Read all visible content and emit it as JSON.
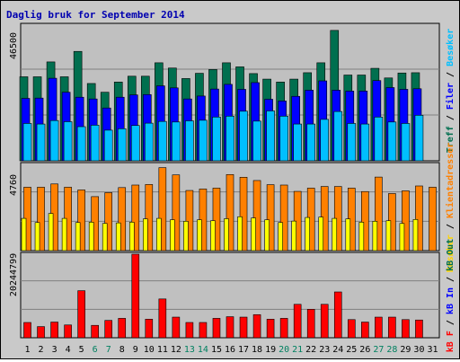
{
  "chart_data": [
    {
      "type": "bar",
      "title": "Daglig bruk for September 2014",
      "max_label": "46500",
      "x_tick_labels": [
        "1",
        "2",
        "3",
        "4",
        "5",
        "6",
        "7",
        "8",
        "9",
        "10",
        "11",
        "12",
        "13",
        "14",
        "15",
        "16",
        "17",
        "18",
        "19",
        "20",
        "21",
        "22",
        "23",
        "24",
        "25",
        "26",
        "27",
        "28",
        "29",
        "30",
        "31"
      ],
      "weekend_days": [
        6,
        7,
        13,
        14,
        20,
        21,
        27,
        28
      ],
      "ylim": [
        0,
        46500
      ],
      "series": [
        {
          "name": "Treff",
          "color": "#006f4f",
          "values": [
            28800,
            28800,
            33900,
            28800,
            37500,
            26500,
            23500,
            27000,
            29000,
            29000,
            33600,
            31800,
            28200,
            30000,
            31300,
            33600,
            32200,
            29900,
            28000,
            27000,
            28000,
            30200,
            33600,
            44700,
            29400,
            29400,
            31700,
            28400,
            30100,
            30200,
            0
          ]
        },
        {
          "name": "Filer",
          "color": "#0000ff",
          "values": [
            21400,
            21500,
            28300,
            23500,
            21800,
            21200,
            18100,
            21800,
            22600,
            22700,
            25700,
            25000,
            21200,
            22200,
            24600,
            26200,
            24500,
            26800,
            21100,
            20500,
            22100,
            24200,
            27400,
            24200,
            23900,
            23900,
            27500,
            25100,
            24500,
            24700,
            0
          ]
        },
        {
          "name": "Besøk",
          "color": "#00bfff",
          "values": [
            12800,
            12600,
            13800,
            13400,
            11700,
            12200,
            10500,
            11000,
            12100,
            12900,
            13500,
            13300,
            13700,
            13900,
            15000,
            15300,
            17000,
            13600,
            17100,
            15300,
            12600,
            12600,
            14200,
            16900,
            12800,
            12600,
            15000,
            13300,
            12800,
            15600,
            0
          ]
        }
      ]
    },
    {
      "type": "bar",
      "max_label": "4760",
      "ylim": [
        0,
        4760
      ],
      "series": [
        {
          "name": "Klientadresser",
          "color": "#ff8000",
          "values": [
            3500,
            3500,
            3680,
            3500,
            3350,
            2980,
            3200,
            3480,
            3620,
            3650,
            4580,
            4180,
            3320,
            3400,
            3450,
            4200,
            4050,
            3870,
            3640,
            3620,
            3270,
            3450,
            3540,
            3540,
            3450,
            3260,
            4060,
            3150,
            3300,
            3570,
            3500
          ]
        },
        {
          "name": "Bessøker",
          "color": "#ffff00",
          "values": [
            1780,
            1550,
            2050,
            1780,
            1550,
            1570,
            1500,
            1530,
            1570,
            1750,
            1780,
            1700,
            1620,
            1700,
            1650,
            1760,
            1870,
            1800,
            1700,
            1550,
            1630,
            1830,
            1850,
            1780,
            1750,
            1570,
            1620,
            1650,
            1500,
            1720,
            0
          ]
        }
      ]
    },
    {
      "type": "bar",
      "max_label": "20244799",
      "ylim": [
        0,
        20244799
      ],
      "series": [
        {
          "name": "kB F",
          "color": "#ff0000",
          "values": [
            0,
            0,
            0,
            0,
            0,
            0,
            0,
            0,
            0,
            0,
            0,
            0,
            0,
            0,
            0,
            0,
            0,
            0,
            0,
            0,
            0,
            0,
            0,
            0,
            0,
            0,
            0,
            0,
            0,
            0,
            0
          ]
        },
        {
          "name": "kB In",
          "color": "#0000ff",
          "values": [
            0,
            0,
            0,
            0,
            0,
            0,
            0,
            0,
            0,
            0,
            0,
            0,
            0,
            0,
            0,
            0,
            0,
            0,
            0,
            0,
            0,
            0,
            0,
            0,
            0,
            0,
            0,
            0,
            0,
            0,
            0
          ]
        },
        {
          "name": "kB Out",
          "color": "#ff0000",
          "values": [
            3700,
            2700,
            3800,
            3100,
            11400,
            3000,
            4200,
            4700,
            20244799,
            4500,
            9400,
            5000,
            3700,
            3700,
            4700,
            5100,
            5000,
            5600,
            4500,
            4700,
            8100,
            6900,
            8100,
            11100,
            4400,
            3800,
            5000,
            5000,
            4400,
            4300,
            0
          ]
        }
      ]
    }
  ],
  "legend": {
    "top": [
      {
        "label": "Treff",
        "color": "#006f4f"
      },
      {
        "label": " / ",
        "color": "#000000"
      },
      {
        "label": "Filer",
        "color": "#0000ff"
      },
      {
        "label": " / ",
        "color": "#000000"
      },
      {
        "label": "Besøker",
        "color": "#00bfff"
      }
    ],
    "middle": [
      {
        "label": "Besøker",
        "color": "#ffd400"
      },
      {
        "label": " / ",
        "color": "#000000"
      },
      {
        "label": "Klientadresser",
        "color": "#ff8000"
      }
    ],
    "bottom": [
      {
        "label": "kB F",
        "color": "#ff0000"
      },
      {
        "label": " / ",
        "color": "#000000"
      },
      {
        "label": "kB In",
        "color": "#0000ff"
      },
      {
        "label": " / ",
        "color": "#000000"
      },
      {
        "label": "kB Out",
        "color": "#006f4f"
      }
    ]
  }
}
